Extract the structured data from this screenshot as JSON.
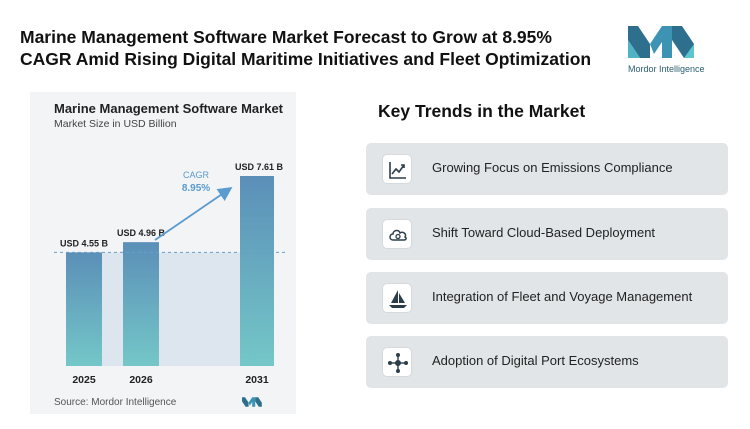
{
  "headline": {
    "line1": "Marine Management Software Market Forecast to Grow at 8.95%",
    "line2": "CAGR Amid Rising Digital Maritime Initiatives and Fleet Optimization"
  },
  "logo": {
    "text": "Mordor Intelligence"
  },
  "chart_data": {
    "type": "bar",
    "title": "Marine Management Software Market",
    "subtitle": "Market Size in USD Billion",
    "categories": [
      "2025",
      "2026",
      "2031"
    ],
    "values": [
      4.55,
      4.96,
      7.61
    ],
    "data_labels": [
      "USD 4.55 B",
      "USD 4.96 B",
      "USD 7.61 B"
    ],
    "ylim": [
      0,
      8
    ],
    "cagr_label": "CAGR",
    "cagr_value": "8.95%",
    "source": "Source: Mordor Intelligence",
    "colors": {
      "bar_top": "#5b8fb8",
      "bar_bottom": "#74c7c8",
      "arrow": "#5a9bd0",
      "dashed": "#6b9fc7"
    }
  },
  "trends": {
    "title": "Key Trends in the Market",
    "items": [
      {
        "label": "Growing Focus on Emissions Compliance",
        "icon": "line-chart-icon"
      },
      {
        "label": "Shift Toward Cloud-Based Deployment",
        "icon": "cloud-icon"
      },
      {
        "label": "Integration of Fleet and Voyage Management",
        "icon": "sailboat-icon"
      },
      {
        "label": "Adoption of Digital Port Ecosystems",
        "icon": "network-icon"
      }
    ]
  }
}
